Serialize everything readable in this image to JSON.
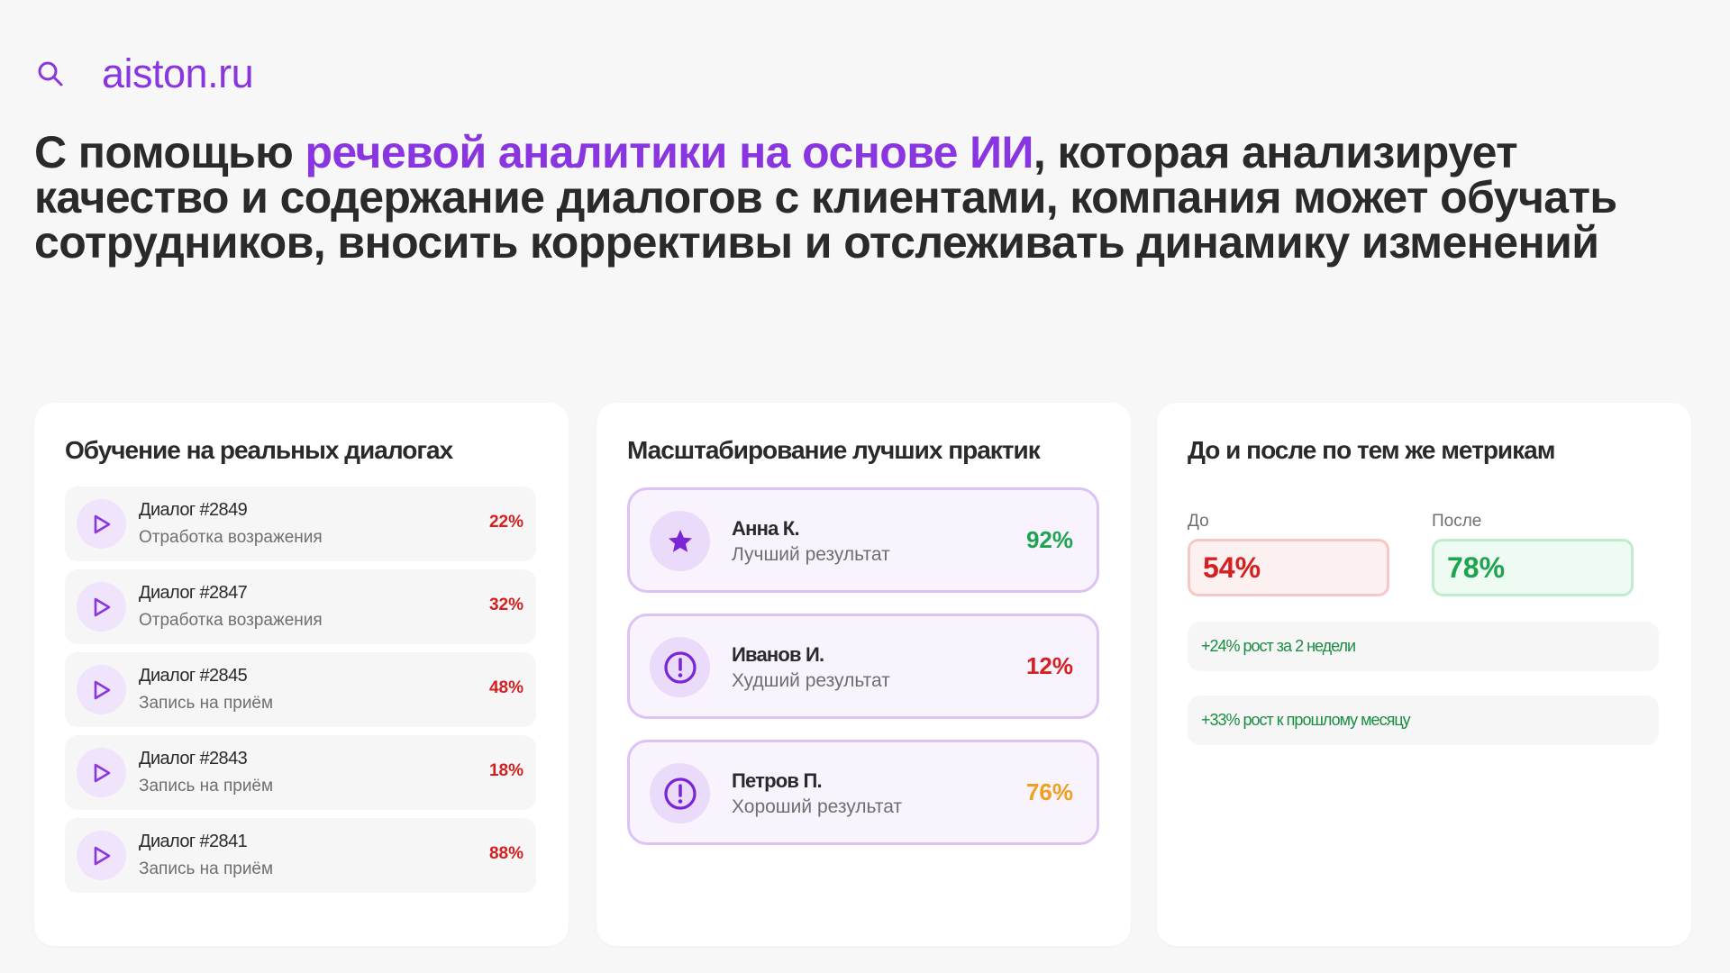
{
  "header": {
    "search_icon": "search-icon",
    "brand": "aiston.ru"
  },
  "headline": {
    "part1": "С помощью ",
    "accent": "речевой аналитики на основе ИИ",
    "part2": ", которая анализирует качество и содержание диалогов с клиентами, компания может обучать сотрудников, вносить коррективы и отслеживать динамику изменений"
  },
  "colors": {
    "accent": "#8a36e0",
    "red": "#d42020",
    "green": "#1ea34f",
    "orange": "#f0a020"
  },
  "card_training": {
    "title": "Обучение на реальных диалогах",
    "dialogs": [
      {
        "title": "Диалог #2849",
        "subtitle": "Отработка возражения",
        "percent": "22%"
      },
      {
        "title": "Диалог #2847",
        "subtitle": "Отработка возражения",
        "percent": "32%"
      },
      {
        "title": "Диалог #2845",
        "subtitle": "Запись на приём",
        "percent": "48%"
      },
      {
        "title": "Диалог #2843",
        "subtitle": "Запись на приём",
        "percent": "18%"
      },
      {
        "title": "Диалог #2841",
        "subtitle": "Запись на приём",
        "percent": "88%"
      }
    ]
  },
  "card_practices": {
    "title": "Масштабирование лучших практик",
    "people": [
      {
        "name": "Анна К.",
        "result": "Лучший результат",
        "percent": "92%",
        "icon": "star-icon",
        "color": "#1ea34f"
      },
      {
        "name": "Иванов И.",
        "result": "Худший результат",
        "percent": "12%",
        "icon": "alert-icon",
        "color": "#d42020"
      },
      {
        "name": "Петров П.",
        "result": "Хороший результат",
        "percent": "76%",
        "icon": "alert-icon",
        "color": "#f0a020"
      }
    ]
  },
  "card_metrics": {
    "title": "До и после по тем же метрикам",
    "before_label": "До",
    "after_label": "После",
    "before_value": "54%",
    "after_value": "78%",
    "growth": [
      "+24% рост за 2 недели",
      "+33% рост к прошлому месяцу"
    ]
  }
}
